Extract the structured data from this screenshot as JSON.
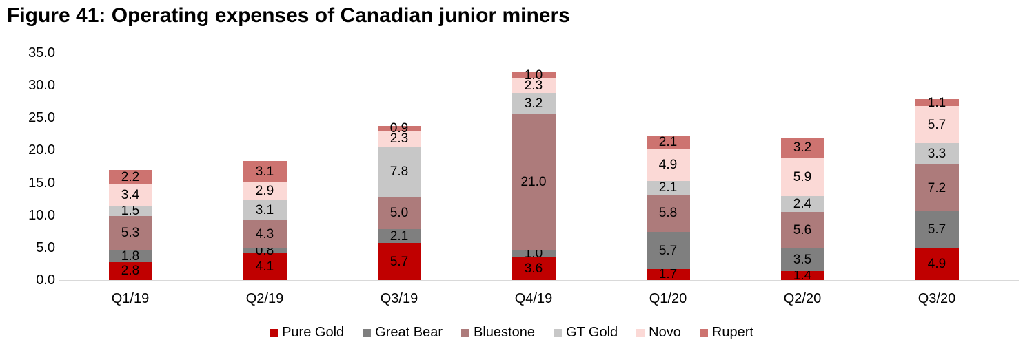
{
  "figure": {
    "title": "Figure 41: Operating expenses of Canadian junior miners"
  },
  "chart_data": {
    "type": "bar",
    "stacked": true,
    "title": "Figure 41: Operating expenses of Canadian junior miners",
    "categories": [
      "Q1/19",
      "Q2/19",
      "Q3/19",
      "Q4/19",
      "Q1/20",
      "Q2/20",
      "Q3/20"
    ],
    "series": [
      {
        "name": "Pure Gold",
        "color": "#c00000",
        "values": [
          2.8,
          4.1,
          5.7,
          3.6,
          1.7,
          1.4,
          4.9
        ]
      },
      {
        "name": "Great Bear",
        "color": "#7f7f7f",
        "values": [
          1.8,
          0.8,
          2.1,
          1.0,
          5.7,
          3.5,
          5.7
        ]
      },
      {
        "name": "Bluestone",
        "color": "#ad7b7b",
        "values": [
          5.3,
          4.3,
          5.0,
          21.0,
          5.8,
          5.6,
          7.2
        ]
      },
      {
        "name": "GT Gold",
        "color": "#c7c7c7",
        "values": [
          1.5,
          3.1,
          7.8,
          3.2,
          2.1,
          2.4,
          3.3
        ]
      },
      {
        "name": "Novo",
        "color": "#fbd9d6",
        "values": [
          3.4,
          2.9,
          2.3,
          2.3,
          4.9,
          5.9,
          5.7
        ]
      },
      {
        "name": "Rupert",
        "color": "#cd7370",
        "values": [
          2.2,
          3.1,
          0.9,
          1.0,
          2.1,
          3.2,
          1.1
        ]
      }
    ],
    "y_axis": {
      "min": 0,
      "max": 35,
      "step": 5,
      "tick_labels": [
        "0.0",
        "5.0",
        "10.0",
        "15.0",
        "20.0",
        "25.0",
        "30.0",
        "35.0"
      ]
    },
    "x_axis_line_color": "#d9d9d9",
    "gridlines": false,
    "data_labels": true,
    "label_decimals": 1,
    "legend_position": "bottom"
  }
}
